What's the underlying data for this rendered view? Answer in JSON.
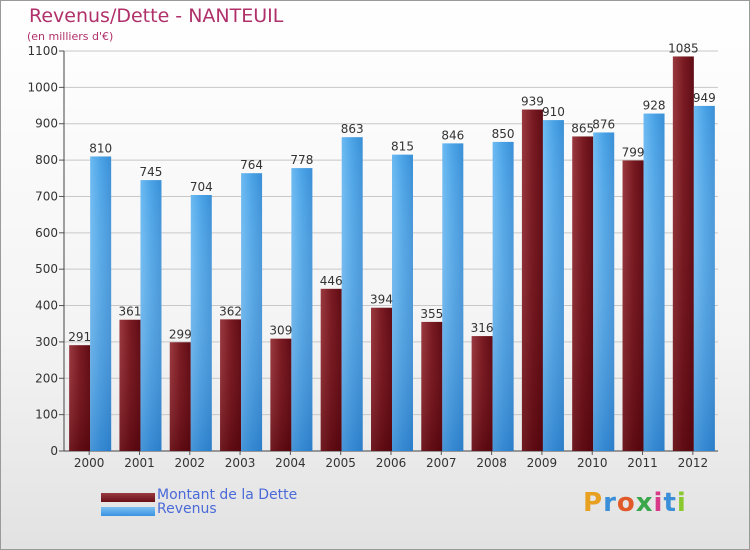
{
  "header": {
    "title": "Revenus/Dette - NANTEUIL",
    "subtitle": "(en milliers d'€)"
  },
  "colors": {
    "dette": "#7a1a22",
    "revenus": "#4aa3e6",
    "title": "#b0306a",
    "legend_text": "#4a6ad8"
  },
  "chart_data": {
    "type": "bar",
    "categories": [
      "2000",
      "2001",
      "2002",
      "2003",
      "2004",
      "2005",
      "2006",
      "2007",
      "2008",
      "2009",
      "2010",
      "2011",
      "2012"
    ],
    "series": [
      {
        "name": "Montant de la Dette",
        "values": [
          291,
          361,
          299,
          362,
          309,
          446,
          394,
          355,
          316,
          939,
          865,
          799,
          1085
        ]
      },
      {
        "name": "Revenus",
        "values": [
          810,
          745,
          704,
          764,
          778,
          863,
          815,
          846,
          850,
          910,
          876,
          928,
          949
        ]
      }
    ],
    "ylim": [
      0,
      1100
    ],
    "yticks": [
      0,
      100,
      200,
      300,
      400,
      500,
      600,
      700,
      800,
      900,
      1000,
      1100
    ],
    "grid": true,
    "legend_position": "bottom-left"
  },
  "legend": {
    "items": [
      {
        "label": "Montant de la Dette",
        "color": "#6a0e16"
      },
      {
        "label": "Revenus",
        "color": "#3a93e0"
      }
    ]
  },
  "logo": {
    "letters": [
      "P",
      "r",
      "o",
      "x",
      "i",
      "t",
      "i"
    ],
    "colors": [
      "#e8a020",
      "#3a8fd8",
      "#e05a2a",
      "#3aa84a",
      "#d83a8a",
      "#3a8fd8",
      "#8ac830"
    ]
  }
}
